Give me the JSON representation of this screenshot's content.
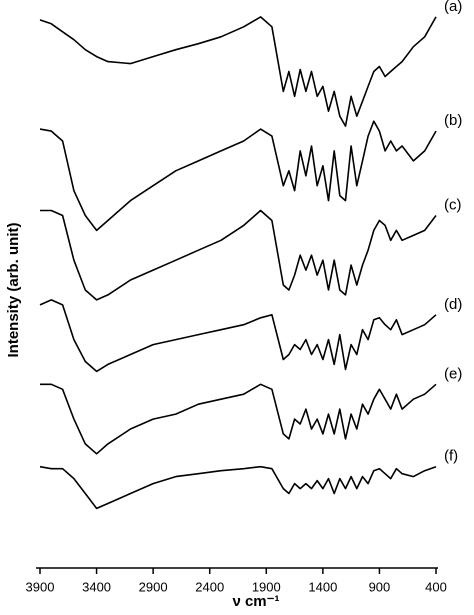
{
  "chart_data": {
    "type": "line",
    "xlabel": "ν cm⁻¹",
    "ylabel": "Intensity (arb. unit)",
    "xlim": [
      3900,
      400
    ],
    "xticks": [
      3900,
      3400,
      2900,
      2400,
      1900,
      1400,
      900,
      400
    ],
    "ylim": [
      0,
      570
    ],
    "x": [
      3900,
      3800,
      3700,
      3600,
      3500,
      3400,
      3300,
      3100,
      2900,
      2700,
      2500,
      2300,
      2100,
      1950,
      1850,
      1750,
      1700,
      1650,
      1600,
      1550,
      1500,
      1450,
      1400,
      1350,
      1300,
      1250,
      1200,
      1150,
      1100,
      1050,
      1000,
      950,
      900,
      850,
      800,
      750,
      700,
      600,
      500,
      400
    ],
    "series": [
      {
        "name": "(a)",
        "color": "#000000",
        "values": [
          552,
          548,
          540,
          532,
          522,
          515,
          510,
          508,
          515,
          522,
          528,
          535,
          545,
          555,
          545,
          480,
          500,
          475,
          502,
          480,
          500,
          475,
          485,
          460,
          480,
          455,
          445,
          475,
          455,
          470,
          485,
          500,
          505,
          495,
          500,
          505,
          510,
          525,
          535,
          555
        ]
      },
      {
        "name": "(b)",
        "color": "#000000",
        "values": [
          442,
          440,
          430,
          380,
          355,
          340,
          350,
          370,
          385,
          400,
          410,
          420,
          430,
          442,
          435,
          385,
          400,
          380,
          420,
          395,
          425,
          385,
          405,
          370,
          420,
          375,
          370,
          425,
          385,
          410,
          435,
          450,
          440,
          420,
          430,
          420,
          425,
          410,
          420,
          440
        ]
      },
      {
        "name": "(c)",
        "color": "#000000",
        "values": [
          360,
          360,
          355,
          310,
          280,
          270,
          275,
          290,
          300,
          310,
          320,
          330,
          345,
          360,
          350,
          285,
          280,
          295,
          315,
          300,
          315,
          295,
          310,
          280,
          310,
          280,
          275,
          305,
          285,
          305,
          320,
          340,
          350,
          345,
          330,
          340,
          330,
          335,
          340,
          355
        ]
      },
      {
        "name": "(d)",
        "color": "#000000",
        "values": [
          265,
          270,
          265,
          230,
          208,
          198,
          205,
          215,
          225,
          230,
          235,
          240,
          245,
          252,
          255,
          210,
          215,
          225,
          220,
          230,
          215,
          225,
          210,
          230,
          205,
          235,
          200,
          225,
          215,
          240,
          230,
          250,
          252,
          245,
          240,
          250,
          235,
          240,
          245,
          255
        ]
      },
      {
        "name": "(e)",
        "color": "#000000",
        "values": [
          185,
          185,
          180,
          150,
          125,
          115,
          125,
          140,
          150,
          155,
          165,
          170,
          175,
          185,
          180,
          135,
          130,
          150,
          145,
          160,
          140,
          150,
          135,
          155,
          135,
          160,
          130,
          155,
          140,
          165,
          155,
          170,
          180,
          170,
          160,
          175,
          160,
          170,
          175,
          185
        ]
      },
      {
        "name": "(f)",
        "color": "#000000",
        "values": [
          102,
          100,
          100,
          90,
          75,
          60,
          65,
          75,
          85,
          92,
          95,
          98,
          100,
          102,
          100,
          80,
          75,
          85,
          80,
          85,
          80,
          88,
          80,
          90,
          75,
          90,
          80,
          92,
          80,
          92,
          85,
          98,
          100,
          95,
          90,
          100,
          95,
          92,
          98,
          102
        ]
      }
    ]
  }
}
